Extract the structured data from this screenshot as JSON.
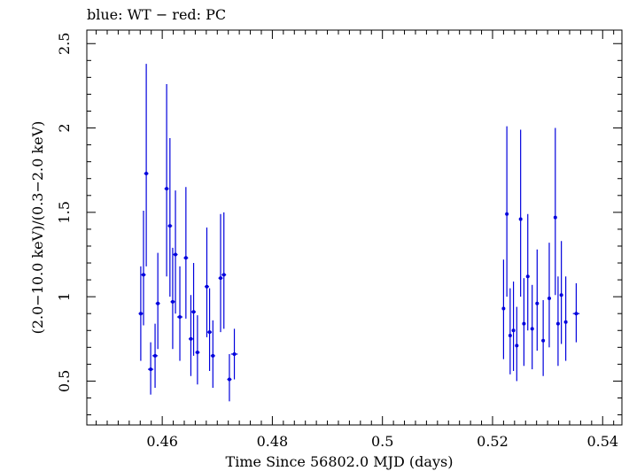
{
  "chart_data": {
    "type": "scatter",
    "title": "blue: WT − red: PC",
    "xlabel": "Time Since 56802.0 MJD (days)",
    "ylabel": "(2.0−10.0 keV)/(0.3−2.0 keV)",
    "xlim": [
      0.4463,
      0.5435
    ],
    "ylim": [
      0.24,
      2.58
    ],
    "x_ticks": [
      0.46,
      0.48,
      0.5,
      0.52,
      0.54
    ],
    "x_tick_labels": [
      "0.46",
      "0.48",
      "0.5",
      "0.52",
      "0.54"
    ],
    "y_ticks": [
      0.5,
      1.0,
      1.5,
      2.0,
      2.5
    ],
    "y_tick_labels": [
      "0.5",
      "1",
      "1.5",
      "2",
      "2.5"
    ],
    "grid": false,
    "series": [
      {
        "color": "#0000dd",
        "points": [
          {
            "x": 0.4561,
            "y": 0.9,
            "ylo": 0.62,
            "yhi": 1.18,
            "xerr": 0.0004
          },
          {
            "x": 0.4566,
            "y": 1.13,
            "ylo": 0.83,
            "yhi": 1.51,
            "xerr": 0.0004
          },
          {
            "x": 0.4571,
            "y": 1.73,
            "ylo": 1.18,
            "yhi": 2.38,
            "xerr": 0.0004
          },
          {
            "x": 0.4579,
            "y": 0.57,
            "ylo": 0.42,
            "yhi": 0.73,
            "xerr": 0.0005
          },
          {
            "x": 0.4587,
            "y": 0.65,
            "ylo": 0.46,
            "yhi": 0.84,
            "xerr": 0.0005
          },
          {
            "x": 0.4592,
            "y": 0.96,
            "ylo": 0.69,
            "yhi": 1.26,
            "xerr": 0.0004
          },
          {
            "x": 0.4608,
            "y": 1.64,
            "ylo": 1.12,
            "yhi": 2.26,
            "xerr": 0.0004
          },
          {
            "x": 0.4614,
            "y": 1.42,
            "ylo": 1.0,
            "yhi": 1.94,
            "xerr": 0.0004
          },
          {
            "x": 0.4619,
            "y": 0.97,
            "ylo": 0.69,
            "yhi": 1.29,
            "xerr": 0.0004
          },
          {
            "x": 0.4624,
            "y": 1.25,
            "ylo": 0.9,
            "yhi": 1.63,
            "xerr": 0.0004
          },
          {
            "x": 0.4632,
            "y": 0.88,
            "ylo": 0.62,
            "yhi": 1.18,
            "xerr": 0.0005
          },
          {
            "x": 0.4643,
            "y": 1.23,
            "ylo": 0.87,
            "yhi": 1.65,
            "xerr": 0.0004
          },
          {
            "x": 0.4652,
            "y": 0.75,
            "ylo": 0.53,
            "yhi": 1.01,
            "xerr": 0.0004
          },
          {
            "x": 0.4657,
            "y": 0.91,
            "ylo": 0.65,
            "yhi": 1.2,
            "xerr": 0.0004
          },
          {
            "x": 0.4664,
            "y": 0.67,
            "ylo": 0.48,
            "yhi": 0.89,
            "xerr": 0.0004
          },
          {
            "x": 0.4681,
            "y": 1.06,
            "ylo": 0.76,
            "yhi": 1.41,
            "xerr": 0.0004
          },
          {
            "x": 0.4686,
            "y": 0.79,
            "ylo": 0.56,
            "yhi": 1.05,
            "xerr": 0.0004
          },
          {
            "x": 0.4692,
            "y": 0.65,
            "ylo": 0.46,
            "yhi": 0.86,
            "xerr": 0.0004
          },
          {
            "x": 0.4706,
            "y": 1.11,
            "ylo": 0.79,
            "yhi": 1.49,
            "xerr": 0.0004
          },
          {
            "x": 0.4712,
            "y": 1.13,
            "ylo": 0.81,
            "yhi": 1.5,
            "xerr": 0.0004
          },
          {
            "x": 0.4722,
            "y": 0.51,
            "ylo": 0.38,
            "yhi": 0.66,
            "xerr": 0.0004
          },
          {
            "x": 0.4731,
            "y": 0.66,
            "ylo": 0.51,
            "yhi": 0.81,
            "xerr": 0.0006
          },
          {
            "x": 0.522,
            "y": 0.93,
            "ylo": 0.63,
            "yhi": 1.22,
            "xerr": 0.0002
          },
          {
            "x": 0.5226,
            "y": 1.49,
            "ylo": 1.0,
            "yhi": 2.01,
            "xerr": 0.0002
          },
          {
            "x": 0.5232,
            "y": 0.77,
            "ylo": 0.54,
            "yhi": 1.05,
            "xerr": 0.0002
          },
          {
            "x": 0.5238,
            "y": 0.8,
            "ylo": 0.56,
            "yhi": 1.09,
            "xerr": 0.0003
          },
          {
            "x": 0.5244,
            "y": 0.71,
            "ylo": 0.5,
            "yhi": 0.94,
            "xerr": 0.0003
          },
          {
            "x": 0.5251,
            "y": 1.46,
            "ylo": 1.0,
            "yhi": 1.99,
            "xerr": 0.0002
          },
          {
            "x": 0.5257,
            "y": 0.84,
            "ylo": 0.59,
            "yhi": 1.11,
            "xerr": 0.0003
          },
          {
            "x": 0.5264,
            "y": 1.12,
            "ylo": 0.8,
            "yhi": 1.49,
            "xerr": 0.0003
          },
          {
            "x": 0.5272,
            "y": 0.81,
            "ylo": 0.57,
            "yhi": 1.07,
            "xerr": 0.0003
          },
          {
            "x": 0.5281,
            "y": 0.96,
            "ylo": 0.68,
            "yhi": 1.28,
            "xerr": 0.0003
          },
          {
            "x": 0.5292,
            "y": 0.74,
            "ylo": 0.53,
            "yhi": 0.98,
            "xerr": 0.0003
          },
          {
            "x": 0.5303,
            "y": 0.99,
            "ylo": 0.7,
            "yhi": 1.32,
            "xerr": 0.0003
          },
          {
            "x": 0.5314,
            "y": 1.47,
            "ylo": 1.01,
            "yhi": 2.0,
            "xerr": 0.0002
          },
          {
            "x": 0.5319,
            "y": 0.84,
            "ylo": 0.59,
            "yhi": 1.12,
            "xerr": 0.0002
          },
          {
            "x": 0.5325,
            "y": 1.01,
            "ylo": 0.72,
            "yhi": 1.33,
            "xerr": 0.0003
          },
          {
            "x": 0.5333,
            "y": 0.85,
            "ylo": 0.62,
            "yhi": 1.12,
            "xerr": 0.0003
          },
          {
            "x": 0.5352,
            "y": 0.9,
            "ylo": 0.73,
            "yhi": 1.08,
            "xerr": 0.0006
          }
        ]
      }
    ]
  }
}
